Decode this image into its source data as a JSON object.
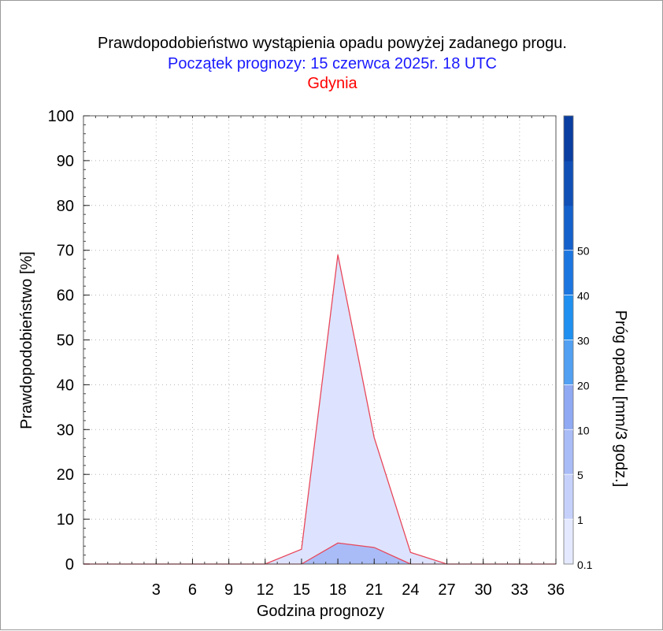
{
  "titles": {
    "line1": "Prawdopodobieństwo wystąpienia opadu powyżej zadanego progu.",
    "line2": "Początek prognozy: 15 czerwca 2025r. 18 UTC",
    "line3": "Gdynia"
  },
  "colors": {
    "title1": "#000000",
    "title2": "#1a1aff",
    "title3": "#ff0000",
    "series_line": "#e8475a"
  },
  "chart_data": {
    "type": "area",
    "xlabel": "Godzina prognozy",
    "ylabel": "Prawdopodobieństwo [%]",
    "xlim": [
      -3,
      36
    ],
    "ylim": [
      0,
      100
    ],
    "x_ticks": [
      3,
      6,
      9,
      12,
      15,
      18,
      21,
      24,
      27,
      30,
      33,
      36
    ],
    "y_ticks": [
      0,
      10,
      20,
      30,
      40,
      50,
      60,
      70,
      80,
      90,
      100
    ],
    "x": [
      -3,
      12,
      15,
      18,
      21,
      24,
      27,
      36
    ],
    "series": [
      {
        "threshold": "0.1",
        "color": "#dde3ff",
        "values": [
          0,
          0,
          3.3,
          69,
          28.2,
          2.6,
          0,
          0
        ]
      },
      {
        "threshold": "1",
        "color": "#aabcf7",
        "values": [
          0,
          0,
          0,
          4.7,
          3.7,
          0,
          0,
          0
        ]
      }
    ],
    "colorbar": {
      "label": "Próg opadu [mm/3 godz.]",
      "tick_labels": [
        "0.1",
        "1",
        "5",
        "10",
        "20",
        "30",
        "40",
        "50"
      ],
      "colors": [
        "#e4e9ff",
        "#c6d1fb",
        "#aabcf7",
        "#8fa9f2",
        "#51a0f2",
        "#1f90f0",
        "#1b76e0",
        "#1461cc",
        "#0f4fb6",
        "#0a3ea0"
      ]
    },
    "grid": true
  }
}
